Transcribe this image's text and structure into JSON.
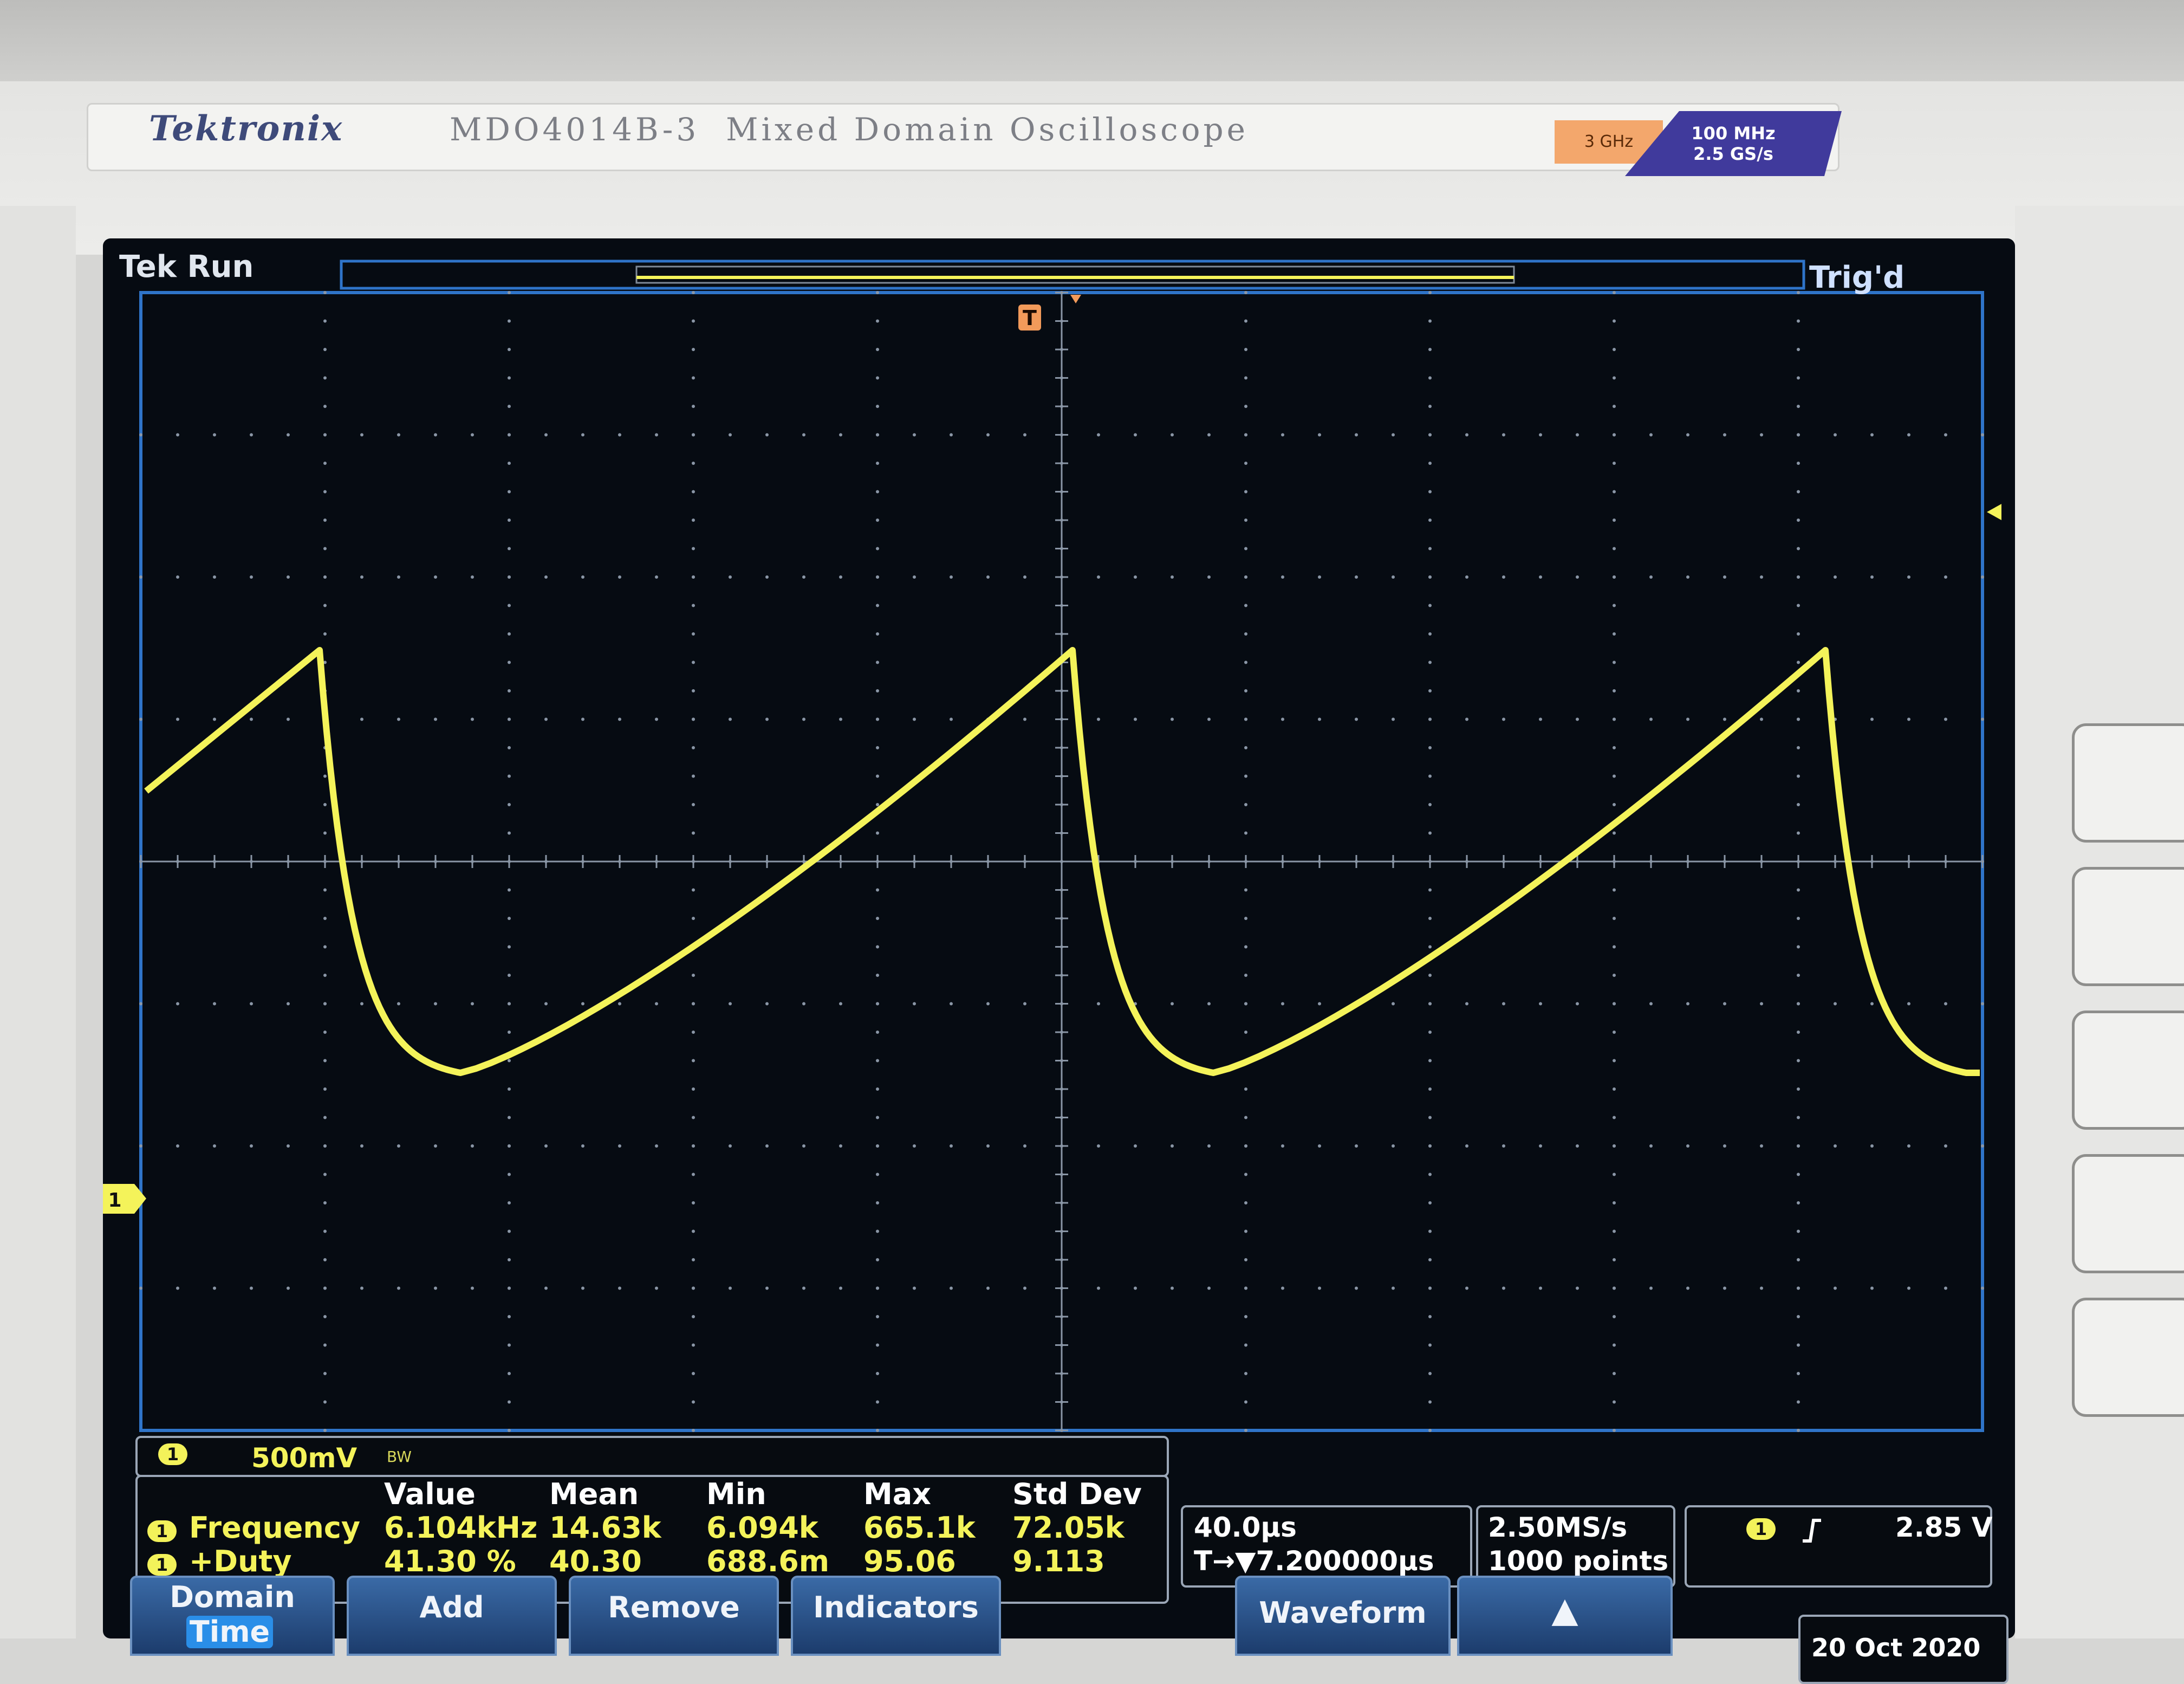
{
  "bezel": {
    "brand": "Tektronix",
    "model": "MDO4014B-3  Mixed Domain Oscilloscope",
    "badge_bandwidth": "3 GHz",
    "badge_rate_line1": "100 MHz",
    "badge_rate_line2": "2.5 GS/s"
  },
  "status": {
    "acq_state": "Tek Run",
    "trigger_state": "Trig'd"
  },
  "markers": {
    "trigger_point": "T",
    "channel_ground": "1"
  },
  "channel": {
    "number": "1",
    "scale": "500mV",
    "bw_icon": "BW",
    "trace_color": "#f4f35a"
  },
  "measurements": {
    "headers": [
      "Value",
      "Mean",
      "Min",
      "Max",
      "Std Dev"
    ],
    "rows": [
      {
        "ch": "1",
        "name": "Frequency",
        "value": "6.104kHz",
        "mean": "14.63k",
        "min": "6.094k",
        "max": "665.1k",
        "std": "72.05k"
      },
      {
        "ch": "1",
        "name": "+Duty",
        "value": "41.30 %",
        "mean": "40.30",
        "min": "688.6m",
        "max": "95.06",
        "std": "9.113"
      }
    ]
  },
  "timebase": {
    "scale": "40.0µs",
    "delay": "T→▼7.200000µs"
  },
  "acquisition": {
    "sample_rate": "2.50MS/s",
    "record_length": "1000 points"
  },
  "trigger": {
    "source": "1",
    "slope_icon": "rising-edge-icon",
    "level": "2.85 V"
  },
  "menu": {
    "domain_label": "Domain",
    "domain_value": "Time",
    "add": "Add",
    "remove": "Remove",
    "indicators": "Indicators",
    "waveform": "Waveform",
    "more": "▲"
  },
  "date": "20 Oct 2020",
  "colors": {
    "grid": "#8a96a6",
    "border": "#2f74c9",
    "trace": "#f4f35a",
    "trigger_marker": "#f29a5a"
  }
}
